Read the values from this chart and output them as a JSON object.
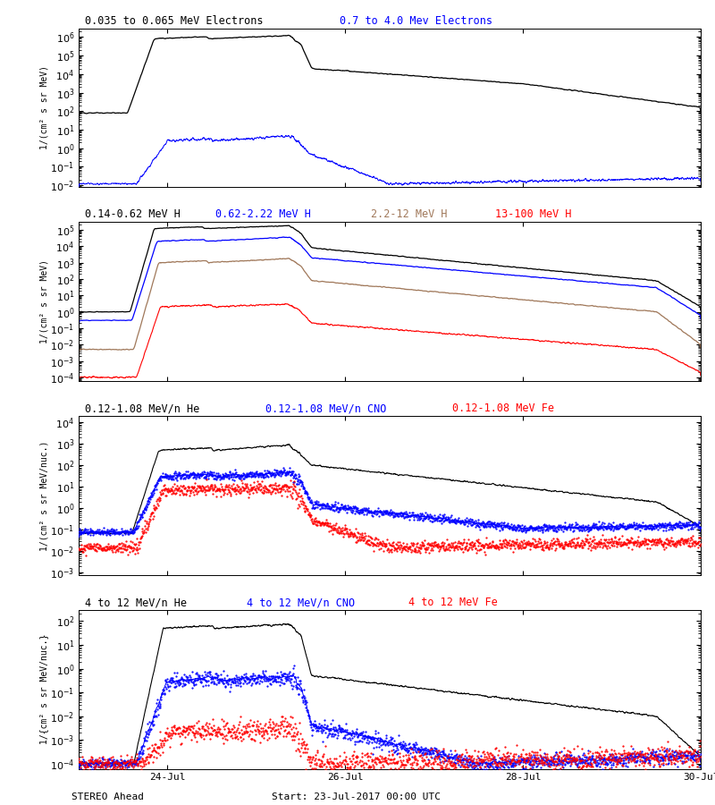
{
  "title_panel1a": "0.035 to 0.065 MeV Electrons",
  "title_panel1b": "0.7 to 4.0 Mev Electrons",
  "title_panel2a": "0.14-0.62 MeV H",
  "title_panel2b": "0.62-2.22 MeV H",
  "title_panel2c": "2.2-12 MeV H",
  "title_panel2d": "13-100 MeV H",
  "title_panel3a": "0.12-1.08 MeV/n He",
  "title_panel3b": "0.12-1.08 MeV/n CNO",
  "title_panel3c": "0.12-1.08 MeV Fe",
  "title_panel4a": "4 to 12 MeV/n He",
  "title_panel4b": "4 to 12 MeV/n CNO",
  "title_panel4c": "4 to 12 MeV Fe",
  "footer_left": "STEREO Ahead",
  "footer_right": "Start: 23-Jul-2017 00:00 UTC",
  "xtick_labels": [
    "24-Jul",
    "26-Jul",
    "28-Jul",
    "30-Jul"
  ],
  "ylabel1": "1/(cm² s sr MeV)",
  "ylabel2": "1/(cm² s sr MeV)",
  "ylabel3": "1/(cm² s sr MeV/nuc.)",
  "ylabel4": "1/{cm² s sr MeV/nuc.}",
  "ylim1": [
    0.008,
    3000000.0
  ],
  "ylim2": [
    6e-05,
    300000.0
  ],
  "ylim3": [
    0.0008,
    20000.0
  ],
  "ylim4": [
    6e-05,
    300
  ],
  "bg": "#ffffff"
}
